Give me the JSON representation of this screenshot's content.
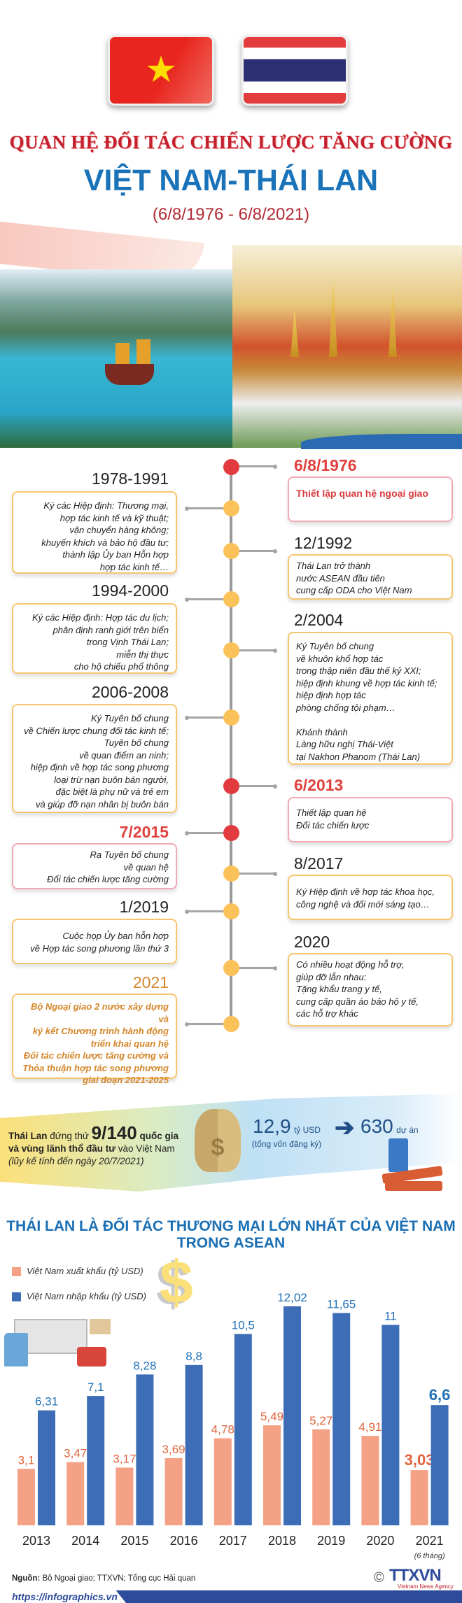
{
  "header": {
    "title_line1": "QUAN HỆ ĐỐI TÁC CHIẾN LƯỢC TĂNG CƯỜNG",
    "title_line2": "VIỆT NAM-THÁI LAN",
    "dates": "(6/8/1976 - 6/8/2021)",
    "flags": [
      "vietnam-flag",
      "thailand-flag"
    ]
  },
  "timeline": {
    "left": [
      {
        "date": "1978-1991",
        "text": "Ký các Hiệp định: Thương mại,\nhợp tác kinh tế và kỹ thuật;\nvận chuyển hàng không;\nkhuyến khích và bảo hộ đầu tư;\nthành lập Ủy ban Hỗn hợp\nhợp tác kinh tế…"
      },
      {
        "date": "1994-2000",
        "text": "Ký các Hiệp định: Hợp tác du lịch;\nphân định ranh giới trên biển\ntrong Vịnh Thái Lan;\nmiễn thị thực\ncho hộ chiếu phổ thông"
      },
      {
        "date": "2006-2008",
        "text": "Ký Tuyên bố chung\nvề Chiến lược chung đối tác kinh tế;\nTuyên bố chung\nvề quan điểm an ninh;\nhiệp định về hợp tác song phương\nloại trừ nạn buôn bán người,\nđặc biệt là phụ nữ và trẻ em\nvà giúp đỡ nạn nhân bị buôn bán"
      },
      {
        "date": "7/2015",
        "text": "Ra Tuyên bố chung\nvề quan hệ\nĐối tác chiến lược tăng cường"
      },
      {
        "date": "1/2019",
        "text": "Cuộc họp Ủy ban hỗn hợp\nvề Hợp tác song phương lần thứ 3"
      },
      {
        "date": "2021",
        "text": "Bộ Ngoại giao 2 nước xây dựng và\nký kết Chương trình hành động\ntriển khai quan hệ\nĐối tác chiến lược tăng cường và\nThỏa thuận hợp tác song phương\ngiai đoạn 2021-2025"
      }
    ],
    "right": [
      {
        "date": "6/8/1976",
        "text": "Thiết lập quan hệ ngoại giao"
      },
      {
        "date": "12/1992",
        "text": "Thái Lan trở thành\nnước ASEAN đầu tiên\ncung cấp ODA cho Việt Nam"
      },
      {
        "date": "2/2004",
        "text": "Ký Tuyên bố chung\nvề khuôn khổ hợp tác\ntrong thập niên đầu thế kỷ XXI;\nhiệp định khung về hợp tác kinh tế;\nhiệp định hợp tác\nphòng chống tội phạm…\n\nKhánh thành\nLàng hữu nghị Thái-Việt\ntại Nakhon Phanom (Thái Lan)"
      },
      {
        "date": "6/2013",
        "text": "Thiết lập quan hệ\nĐối tác chiến lược"
      },
      {
        "date": "8/2017",
        "text": "Ký Hiệp định về hợp tác khoa học,\ncông nghệ và đổi mới sáng tạo…"
      },
      {
        "date": "2020",
        "text": "Có nhiều hoạt động hỗ trợ,\ngiúp đỡ lẫn nhau:\nTặng khẩu trang y tế,\ncung cấp quần áo bảo hộ y tế,\ncác hỗ trợ khác"
      }
    ]
  },
  "investment": {
    "country": "Thái Lan",
    "rank_prefix": "đứng thứ",
    "rank": "9/140",
    "rank_suffix": "quốc gia",
    "line2_bold": "và vùng lãnh thổ đầu tư",
    "line2_rest": "vào Việt Nam",
    "note": "(lũy kế tính đến ngày 20/7/2021)",
    "capital_value": "12,9",
    "capital_unit": "tỷ USD",
    "capital_note": "(tổng vốn đăng ký)",
    "projects_value": "630",
    "projects_unit": "dự án"
  },
  "chart_data": {
    "type": "bar",
    "title": "THÁI LAN LÀ ĐỐI TÁC THƯƠNG MẠI LỚN NHẤT CỦA VIỆT NAM TRONG ASEAN",
    "title_line1": "THÁI LAN LÀ ĐỐI TÁC THƯƠNG MẠI LỚN NHẤT CỦA VIỆT NAM",
    "title_line2": "TRONG ASEAN",
    "categories": [
      "2013",
      "2014",
      "2015",
      "2016",
      "2017",
      "2018",
      "2019",
      "2020",
      "2021"
    ],
    "category_notes": {
      "2021": "(6 tháng)"
    },
    "series": [
      {
        "name": "Việt Nam xuất khẩu (tỷ USD)",
        "color": "#f5a185",
        "label_color": "#e0643c",
        "values": [
          3.1,
          3.47,
          3.17,
          3.69,
          4.78,
          5.49,
          5.27,
          4.91,
          3.03
        ],
        "labels": [
          "3,1",
          "3,47",
          "3,17",
          "3,69",
          "4,78",
          "5,49",
          "5,27",
          "4,91",
          "3,03"
        ]
      },
      {
        "name": "Việt Nam nhập khẩu (tỷ USD)",
        "color": "#3d6db7",
        "label_color": "#1f6fb5",
        "values": [
          6.31,
          7.1,
          8.28,
          8.8,
          10.5,
          12.02,
          11.65,
          11,
          6.6
        ],
        "labels": [
          "6,31",
          "7,1",
          "8,28",
          "8,8",
          "10,5",
          "12,02",
          "11,65",
          "11",
          "6,6"
        ]
      }
    ],
    "ylim": [
      0,
      12.02
    ],
    "grid": false,
    "legend": "top-left"
  },
  "footer": {
    "source_label": "Nguồn:",
    "source_text": "Bộ Ngoại giao; TTXVN; Tổng cục Hải quan",
    "url": "https://infographics.vn",
    "logo_text": "TTXVN",
    "logo_sub": "Vietnam News Agency",
    "copyright": "©"
  }
}
